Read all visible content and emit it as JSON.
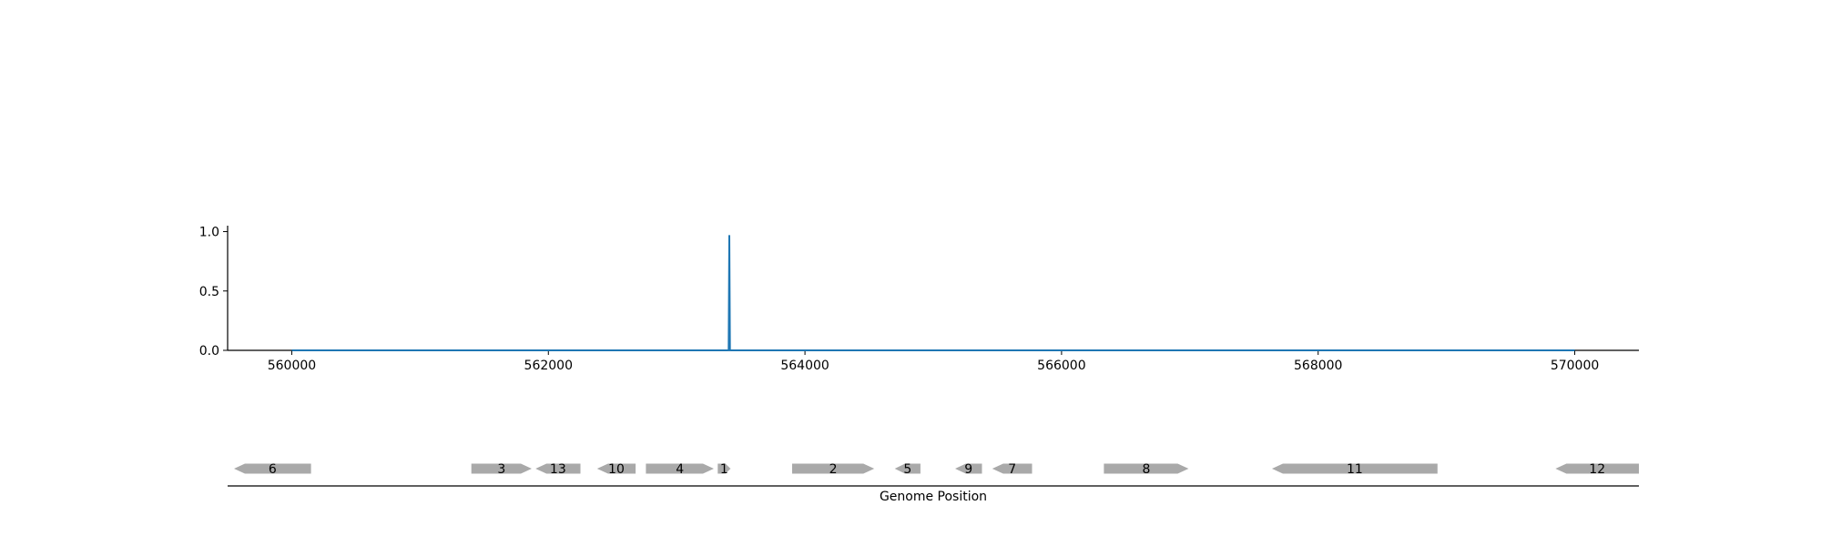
{
  "chart_data": [
    {
      "type": "line",
      "title": "",
      "xlabel": "",
      "ylabel": "",
      "xlim": [
        559500,
        570500
      ],
      "ylim": [
        0,
        1.05
      ],
      "x_ticks": [
        560000,
        562000,
        564000,
        566000,
        568000,
        570000
      ],
      "x_tick_labels": [
        "560000",
        "562000",
        "564000",
        "566000",
        "568000",
        "570000"
      ],
      "y_ticks": [
        0,
        0.5,
        1.0
      ],
      "y_tick_labels": [
        "0.0",
        "0.5",
        "1.0"
      ],
      "grid": false,
      "series": [
        {
          "color": "#1f77b4",
          "x": [
            560000,
            563405,
            563410,
            563415,
            570000
          ],
          "y": [
            0,
            0,
            0.97,
            0,
            0
          ]
        }
      ]
    },
    {
      "type": "gene-track",
      "xlabel": "Genome Position",
      "xlim": [
        559500,
        570500
      ],
      "gene_color": "#a9a9a9",
      "genes": [
        {
          "label": "6",
          "start": 559550,
          "end": 560150,
          "strand": "-"
        },
        {
          "label": "3",
          "start": 561400,
          "end": 561870,
          "strand": "+"
        },
        {
          "label": "13",
          "start": 561900,
          "end": 562250,
          "strand": "-"
        },
        {
          "label": "10",
          "start": 562380,
          "end": 562680,
          "strand": "-"
        },
        {
          "label": "4",
          "start": 562760,
          "end": 563290,
          "strand": "+"
        },
        {
          "label": "1",
          "start": 563320,
          "end": 563420,
          "strand": "+"
        },
        {
          "label": "2",
          "start": 563900,
          "end": 564540,
          "strand": "+"
        },
        {
          "label": "5",
          "start": 564700,
          "end": 564900,
          "strand": "-"
        },
        {
          "label": "9",
          "start": 565170,
          "end": 565380,
          "strand": "-"
        },
        {
          "label": "7",
          "start": 565460,
          "end": 565770,
          "strand": "-"
        },
        {
          "label": "8",
          "start": 566330,
          "end": 566990,
          "strand": "+"
        },
        {
          "label": "11",
          "start": 567640,
          "end": 568930,
          "strand": "-"
        },
        {
          "label": "12",
          "start": 569850,
          "end": 570500,
          "strand": "-"
        }
      ]
    }
  ]
}
